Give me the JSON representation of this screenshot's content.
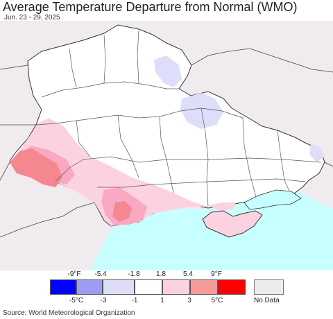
{
  "title": "Average Temperature Departure from Normal (WMO)",
  "subtitle": "Jun. 23 - 29, 2025",
  "source": "Source: World Meteorological Organization",
  "colors": {
    "land_outside": "#efebee",
    "land_inside": "#ffffff",
    "sea": "#c8ffff",
    "borders": "#444444",
    "light_blue": "#dedefb",
    "light_pink": "#fcd2e0",
    "pink": "#f9a9c1",
    "salmon": "#f4878f"
  },
  "legend": {
    "fahrenheit_labels": [
      "-9°F",
      "-5.4",
      "-1.8",
      "1.8",
      "5.4",
      "9°F"
    ],
    "celsius_labels": [
      "-5°C",
      "-3",
      "-1",
      "1",
      "3",
      "5°C"
    ],
    "swatches": [
      {
        "color": "#0000ff"
      },
      {
        "color": "#9c9cf3"
      },
      {
        "color": "#dedefb"
      },
      {
        "color": "#ffffff"
      },
      {
        "color": "#fcd2e0"
      },
      {
        "color": "#f69a9a"
      },
      {
        "color": "#ff0000"
      }
    ],
    "no_data_label": "No Data",
    "no_data_color": "#efebee"
  }
}
